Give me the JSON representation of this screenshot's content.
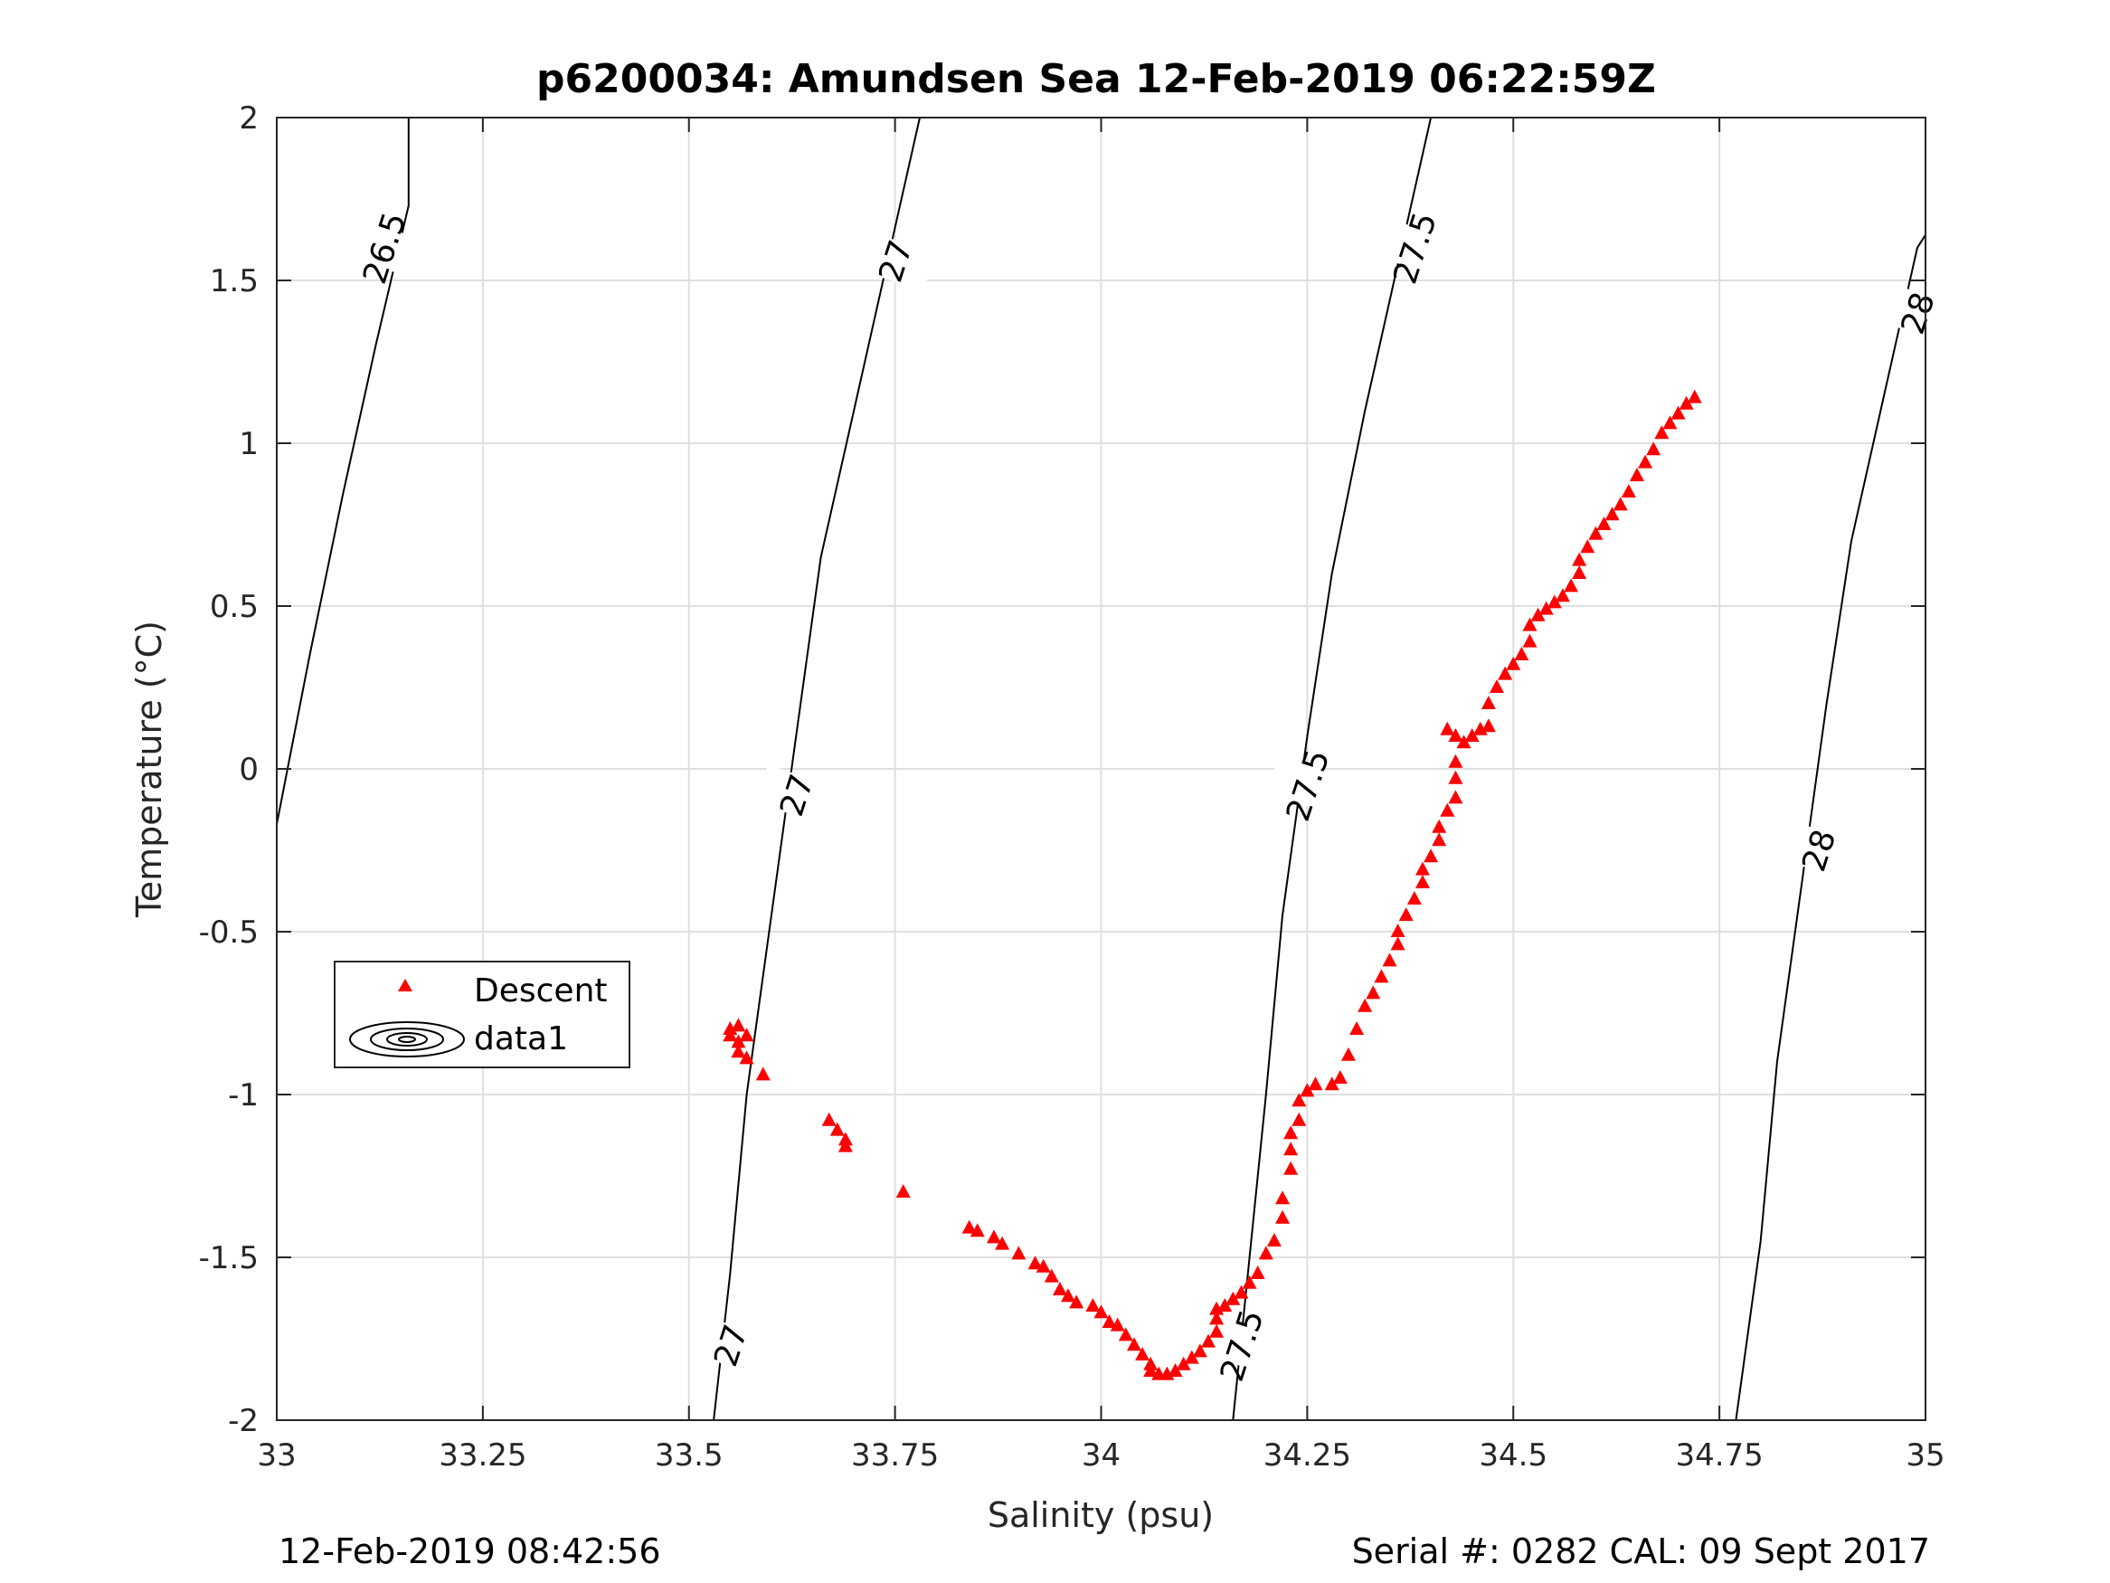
{
  "chart_data": {
    "type": "scatter",
    "title": "p6200034: Amundsen Sea 12-Feb-2019 06:22:59Z",
    "xlabel": "Salinity (psu)",
    "ylabel": "Temperature (°C)",
    "xlim": [
      33,
      35
    ],
    "ylim": [
      -2,
      2
    ],
    "xticks": [
      33,
      33.25,
      33.5,
      33.75,
      34,
      34.25,
      34.5,
      34.75,
      35
    ],
    "xtick_labels": [
      "33",
      "33.25",
      "33.5",
      "33.75",
      "34",
      "34.25",
      "34.5",
      "34.75",
      "35"
    ],
    "yticks": [
      -2,
      -1.5,
      -1,
      -0.5,
      0,
      0.5,
      1,
      1.5,
      2
    ],
    "ytick_labels": [
      "-2",
      "-1.5",
      "-1",
      "-0.5",
      "0",
      "0.5",
      "1",
      "1.5",
      "2"
    ],
    "grid": true,
    "legend_position": "lower-left",
    "legend": [
      "Descent",
      "data1"
    ],
    "series": [
      {
        "name": "Descent",
        "marker": "triangle",
        "color": "#ff0000",
        "points": [
          [
            33.55,
            -0.8
          ],
          [
            33.55,
            -0.82
          ],
          [
            33.56,
            -0.79
          ],
          [
            33.56,
            -0.84
          ],
          [
            33.56,
            -0.87
          ],
          [
            33.57,
            -0.82
          ],
          [
            33.57,
            -0.89
          ],
          [
            33.59,
            -0.94
          ],
          [
            33.67,
            -1.08
          ],
          [
            33.68,
            -1.11
          ],
          [
            33.69,
            -1.14
          ],
          [
            33.69,
            -1.16
          ],
          [
            33.76,
            -1.3
          ],
          [
            33.84,
            -1.41
          ],
          [
            33.85,
            -1.42
          ],
          [
            33.87,
            -1.44
          ],
          [
            33.88,
            -1.46
          ],
          [
            33.9,
            -1.49
          ],
          [
            33.92,
            -1.52
          ],
          [
            33.93,
            -1.53
          ],
          [
            33.94,
            -1.56
          ],
          [
            33.95,
            -1.6
          ],
          [
            33.96,
            -1.62
          ],
          [
            33.97,
            -1.64
          ],
          [
            33.99,
            -1.65
          ],
          [
            34.0,
            -1.67
          ],
          [
            34.01,
            -1.7
          ],
          [
            34.02,
            -1.71
          ],
          [
            34.03,
            -1.74
          ],
          [
            34.04,
            -1.77
          ],
          [
            34.05,
            -1.8
          ],
          [
            34.06,
            -1.83
          ],
          [
            34.06,
            -1.85
          ],
          [
            34.07,
            -1.86
          ],
          [
            34.08,
            -1.86
          ],
          [
            34.09,
            -1.85
          ],
          [
            34.1,
            -1.83
          ],
          [
            34.11,
            -1.81
          ],
          [
            34.12,
            -1.79
          ],
          [
            34.13,
            -1.76
          ],
          [
            34.14,
            -1.73
          ],
          [
            34.14,
            -1.69
          ],
          [
            34.14,
            -1.66
          ],
          [
            34.15,
            -1.65
          ],
          [
            34.16,
            -1.63
          ],
          [
            34.17,
            -1.61
          ],
          [
            34.18,
            -1.58
          ],
          [
            34.19,
            -1.55
          ],
          [
            34.2,
            -1.49
          ],
          [
            34.21,
            -1.45
          ],
          [
            34.22,
            -1.38
          ],
          [
            34.22,
            -1.32
          ],
          [
            34.23,
            -1.23
          ],
          [
            34.23,
            -1.17
          ],
          [
            34.23,
            -1.12
          ],
          [
            34.24,
            -1.08
          ],
          [
            34.24,
            -1.02
          ],
          [
            34.25,
            -0.99
          ],
          [
            34.26,
            -0.97
          ],
          [
            34.28,
            -0.97
          ],
          [
            34.29,
            -0.95
          ],
          [
            34.3,
            -0.88
          ],
          [
            34.31,
            -0.8
          ],
          [
            34.32,
            -0.73
          ],
          [
            34.33,
            -0.69
          ],
          [
            34.34,
            -0.64
          ],
          [
            34.35,
            -0.59
          ],
          [
            34.36,
            -0.54
          ],
          [
            34.36,
            -0.5
          ],
          [
            34.37,
            -0.45
          ],
          [
            34.38,
            -0.4
          ],
          [
            34.39,
            -0.35
          ],
          [
            34.39,
            -0.31
          ],
          [
            34.4,
            -0.27
          ],
          [
            34.41,
            -0.22
          ],
          [
            34.41,
            -0.18
          ],
          [
            34.42,
            -0.13
          ],
          [
            34.43,
            -0.09
          ],
          [
            34.43,
            -0.03
          ],
          [
            34.43,
            0.02
          ],
          [
            34.42,
            0.12
          ],
          [
            34.43,
            0.1
          ],
          [
            34.44,
            0.08
          ],
          [
            34.45,
            0.1
          ],
          [
            34.46,
            0.12
          ],
          [
            34.47,
            0.13
          ],
          [
            34.47,
            0.2
          ],
          [
            34.48,
            0.25
          ],
          [
            34.49,
            0.29
          ],
          [
            34.5,
            0.32
          ],
          [
            34.51,
            0.35
          ],
          [
            34.52,
            0.39
          ],
          [
            34.52,
            0.44
          ],
          [
            34.53,
            0.47
          ],
          [
            34.54,
            0.49
          ],
          [
            34.55,
            0.51
          ],
          [
            34.56,
            0.53
          ],
          [
            34.57,
            0.56
          ],
          [
            34.58,
            0.6
          ],
          [
            34.58,
            0.64
          ],
          [
            34.59,
            0.68
          ],
          [
            34.6,
            0.72
          ],
          [
            34.61,
            0.75
          ],
          [
            34.62,
            0.78
          ],
          [
            34.63,
            0.81
          ],
          [
            34.64,
            0.85
          ],
          [
            34.65,
            0.9
          ],
          [
            34.66,
            0.94
          ],
          [
            34.67,
            0.98
          ],
          [
            34.68,
            1.03
          ],
          [
            34.69,
            1.06
          ],
          [
            34.7,
            1.09
          ],
          [
            34.71,
            1.12
          ],
          [
            34.72,
            1.14
          ]
        ]
      },
      {
        "name": "data1",
        "type": "contour",
        "color": "#000000",
        "isopycnals": [
          {
            "label": "26.5",
            "points": [
              [
                33.0,
                -0.17
              ],
              [
                33.04,
                0.35
              ],
              [
                33.08,
                0.84
              ],
              [
                33.12,
                1.3
              ],
              [
                33.16,
                1.73
              ],
              [
                33.16,
                2.0
              ]
            ]
          },
          {
            "label": "27",
            "points": [
              [
                33.53,
                -2.0
              ],
              [
                33.55,
                -1.55
              ],
              [
                33.57,
                -1.0
              ],
              [
                33.6,
                -0.45
              ],
              [
                33.63,
                0.1
              ],
              [
                33.66,
                0.65
              ],
              [
                33.7,
                1.1
              ],
              [
                33.74,
                1.55
              ],
              [
                33.78,
                2.0
              ]
            ]
          },
          {
            "label": "27.5",
            "points": [
              [
                34.16,
                -2.0
              ],
              [
                34.18,
                -1.5
              ],
              [
                34.2,
                -1.0
              ],
              [
                34.22,
                -0.45
              ],
              [
                34.25,
                0.1
              ],
              [
                34.28,
                0.6
              ],
              [
                34.32,
                1.1
              ],
              [
                34.36,
                1.55
              ],
              [
                34.4,
                2.0
              ]
            ]
          },
          {
            "label": "28",
            "points": [
              [
                34.77,
                -2.0
              ],
              [
                34.8,
                -1.45
              ],
              [
                34.82,
                -0.9
              ],
              [
                34.85,
                -0.35
              ],
              [
                34.88,
                0.2
              ],
              [
                34.91,
                0.7
              ],
              [
                34.95,
                1.15
              ],
              [
                34.99,
                1.6
              ],
              [
                35.0,
                1.64
              ]
            ]
          }
        ],
        "contour_labels": [
          {
            "text": "26.5",
            "s": 33.13,
            "t": 1.6
          },
          {
            "text": "27",
            "s": 33.75,
            "t": 1.56
          },
          {
            "text": "27",
            "s": 33.63,
            "t": -0.08
          },
          {
            "text": "27",
            "s": 33.55,
            "t": -1.77
          },
          {
            "text": "27.5",
            "s": 34.38,
            "t": 1.6
          },
          {
            "text": "27.5",
            "s": 34.25,
            "t": -0.05
          },
          {
            "text": "27.5",
            "s": 34.17,
            "t": -1.77
          },
          {
            "text": "28",
            "s": 34.99,
            "t": 1.4
          },
          {
            "text": "28",
            "s": 34.87,
            "t": -0.25
          }
        ]
      }
    ]
  },
  "footer": {
    "date": "12-Feb-2019 08:42:56",
    "serial": "Serial #: 0282  CAL: 09 Sept 2017"
  }
}
